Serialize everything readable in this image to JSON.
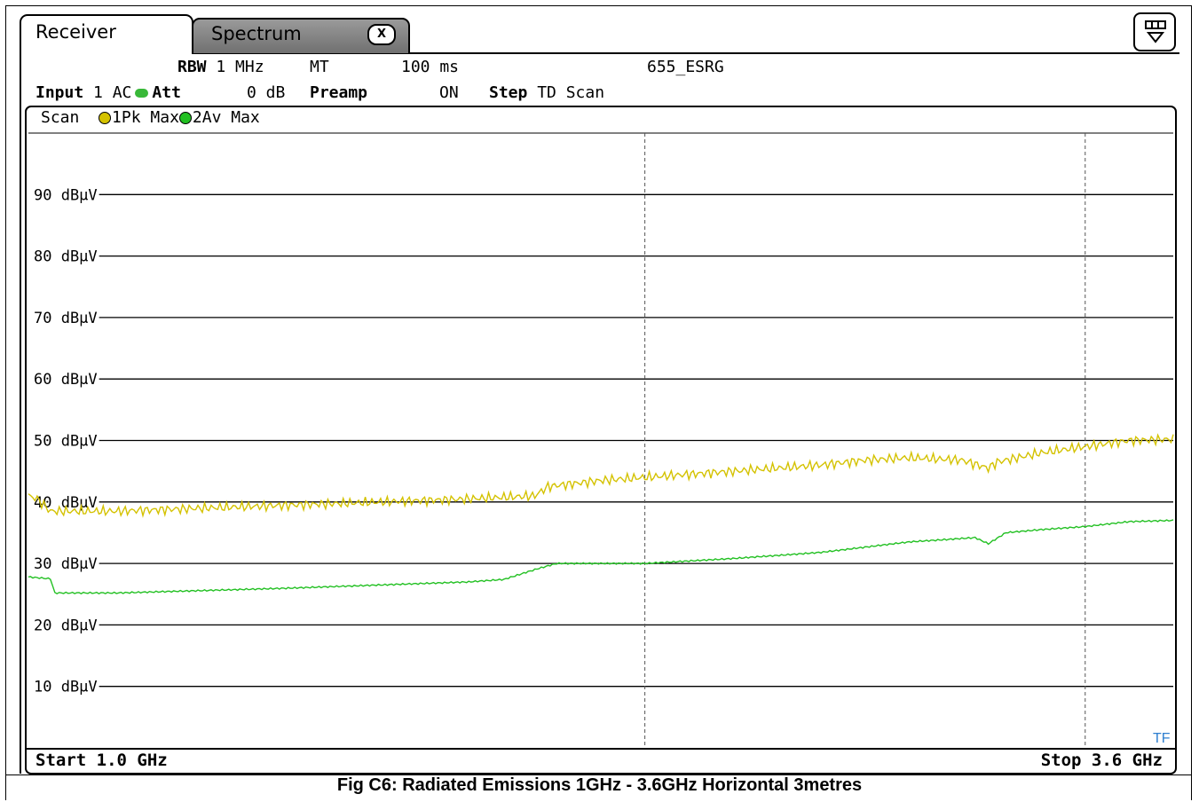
{
  "tabs": {
    "receiver": "Receiver",
    "spectrum": "Spectrum",
    "close": "X"
  },
  "settings": {
    "rbw_label": "RBW",
    "rbw_value": "1 MHz",
    "mt_label": "MT",
    "mt_value": "100 ms",
    "ref_name": "655_ESRG",
    "input_label": "Input",
    "input_value": "1 AC",
    "att_label": "Att",
    "att_value": "0 dB",
    "preamp_label": "Preamp",
    "preamp_value": "ON",
    "step_label": "Step",
    "step_value": "TD Scan"
  },
  "trace_legend": {
    "scan": "Scan",
    "trace1": "1Pk Max",
    "trace2": "2Av Max"
  },
  "caption": "Fig C6: Radiated Emissions 1GHz - 3.6GHz Horizontal 3metres",
  "tf_label": "TF",
  "colors": {
    "peak": "#d4c200",
    "average": "#22c022"
  },
  "chart_data": {
    "type": "line",
    "x_start_label": "Start 1.0 GHz",
    "x_stop_label": "Stop 3.6 GHz",
    "xlim": [
      1.0,
      3.6
    ],
    "ylim": [
      0,
      100
    ],
    "y_unit": "dBµV",
    "yticks": [
      10,
      20,
      30,
      40,
      50,
      60,
      70,
      80,
      90
    ],
    "ytick_labels": [
      "10 dBµV",
      "20 dBµV",
      "30 dBµV",
      "40 dBµV",
      "50 dBµV",
      "60 dBµV",
      "70 dBµV",
      "80 dBµV",
      "90 dBµV"
    ],
    "vertical_markers_ghz": [
      2.4,
      3.4
    ],
    "grid": true,
    "series": [
      {
        "name": "1Pk Max",
        "x": [
          1.0,
          1.02,
          1.05,
          1.2,
          1.4,
          1.6,
          1.8,
          2.0,
          2.15,
          2.18,
          2.3,
          2.4,
          2.5,
          2.6,
          2.7,
          2.8,
          2.9,
          3.0,
          3.12,
          3.18,
          3.2,
          3.3,
          3.4,
          3.5,
          3.6
        ],
        "y": [
          41.0,
          40.5,
          38.5,
          38.5,
          39.0,
          39.5,
          40.0,
          40.5,
          41.0,
          42.5,
          43.5,
          44.0,
          44.5,
          45.0,
          45.5,
          46.0,
          46.8,
          47.2,
          46.8,
          45.5,
          46.5,
          48.0,
          49.0,
          50.0,
          50.2
        ]
      },
      {
        "name": "2Av Max",
        "x": [
          1.0,
          1.05,
          1.06,
          1.2,
          1.4,
          1.6,
          1.8,
          2.0,
          2.08,
          2.15,
          2.2,
          2.4,
          2.6,
          2.8,
          3.0,
          3.15,
          3.18,
          3.22,
          3.3,
          3.4,
          3.5,
          3.6
        ],
        "y": [
          27.8,
          27.5,
          25.2,
          25.2,
          25.6,
          26.0,
          26.5,
          27.0,
          27.4,
          29.0,
          30.0,
          30.0,
          30.8,
          31.8,
          33.5,
          34.2,
          33.2,
          35.0,
          35.5,
          36.0,
          36.8,
          37.0
        ]
      }
    ]
  }
}
